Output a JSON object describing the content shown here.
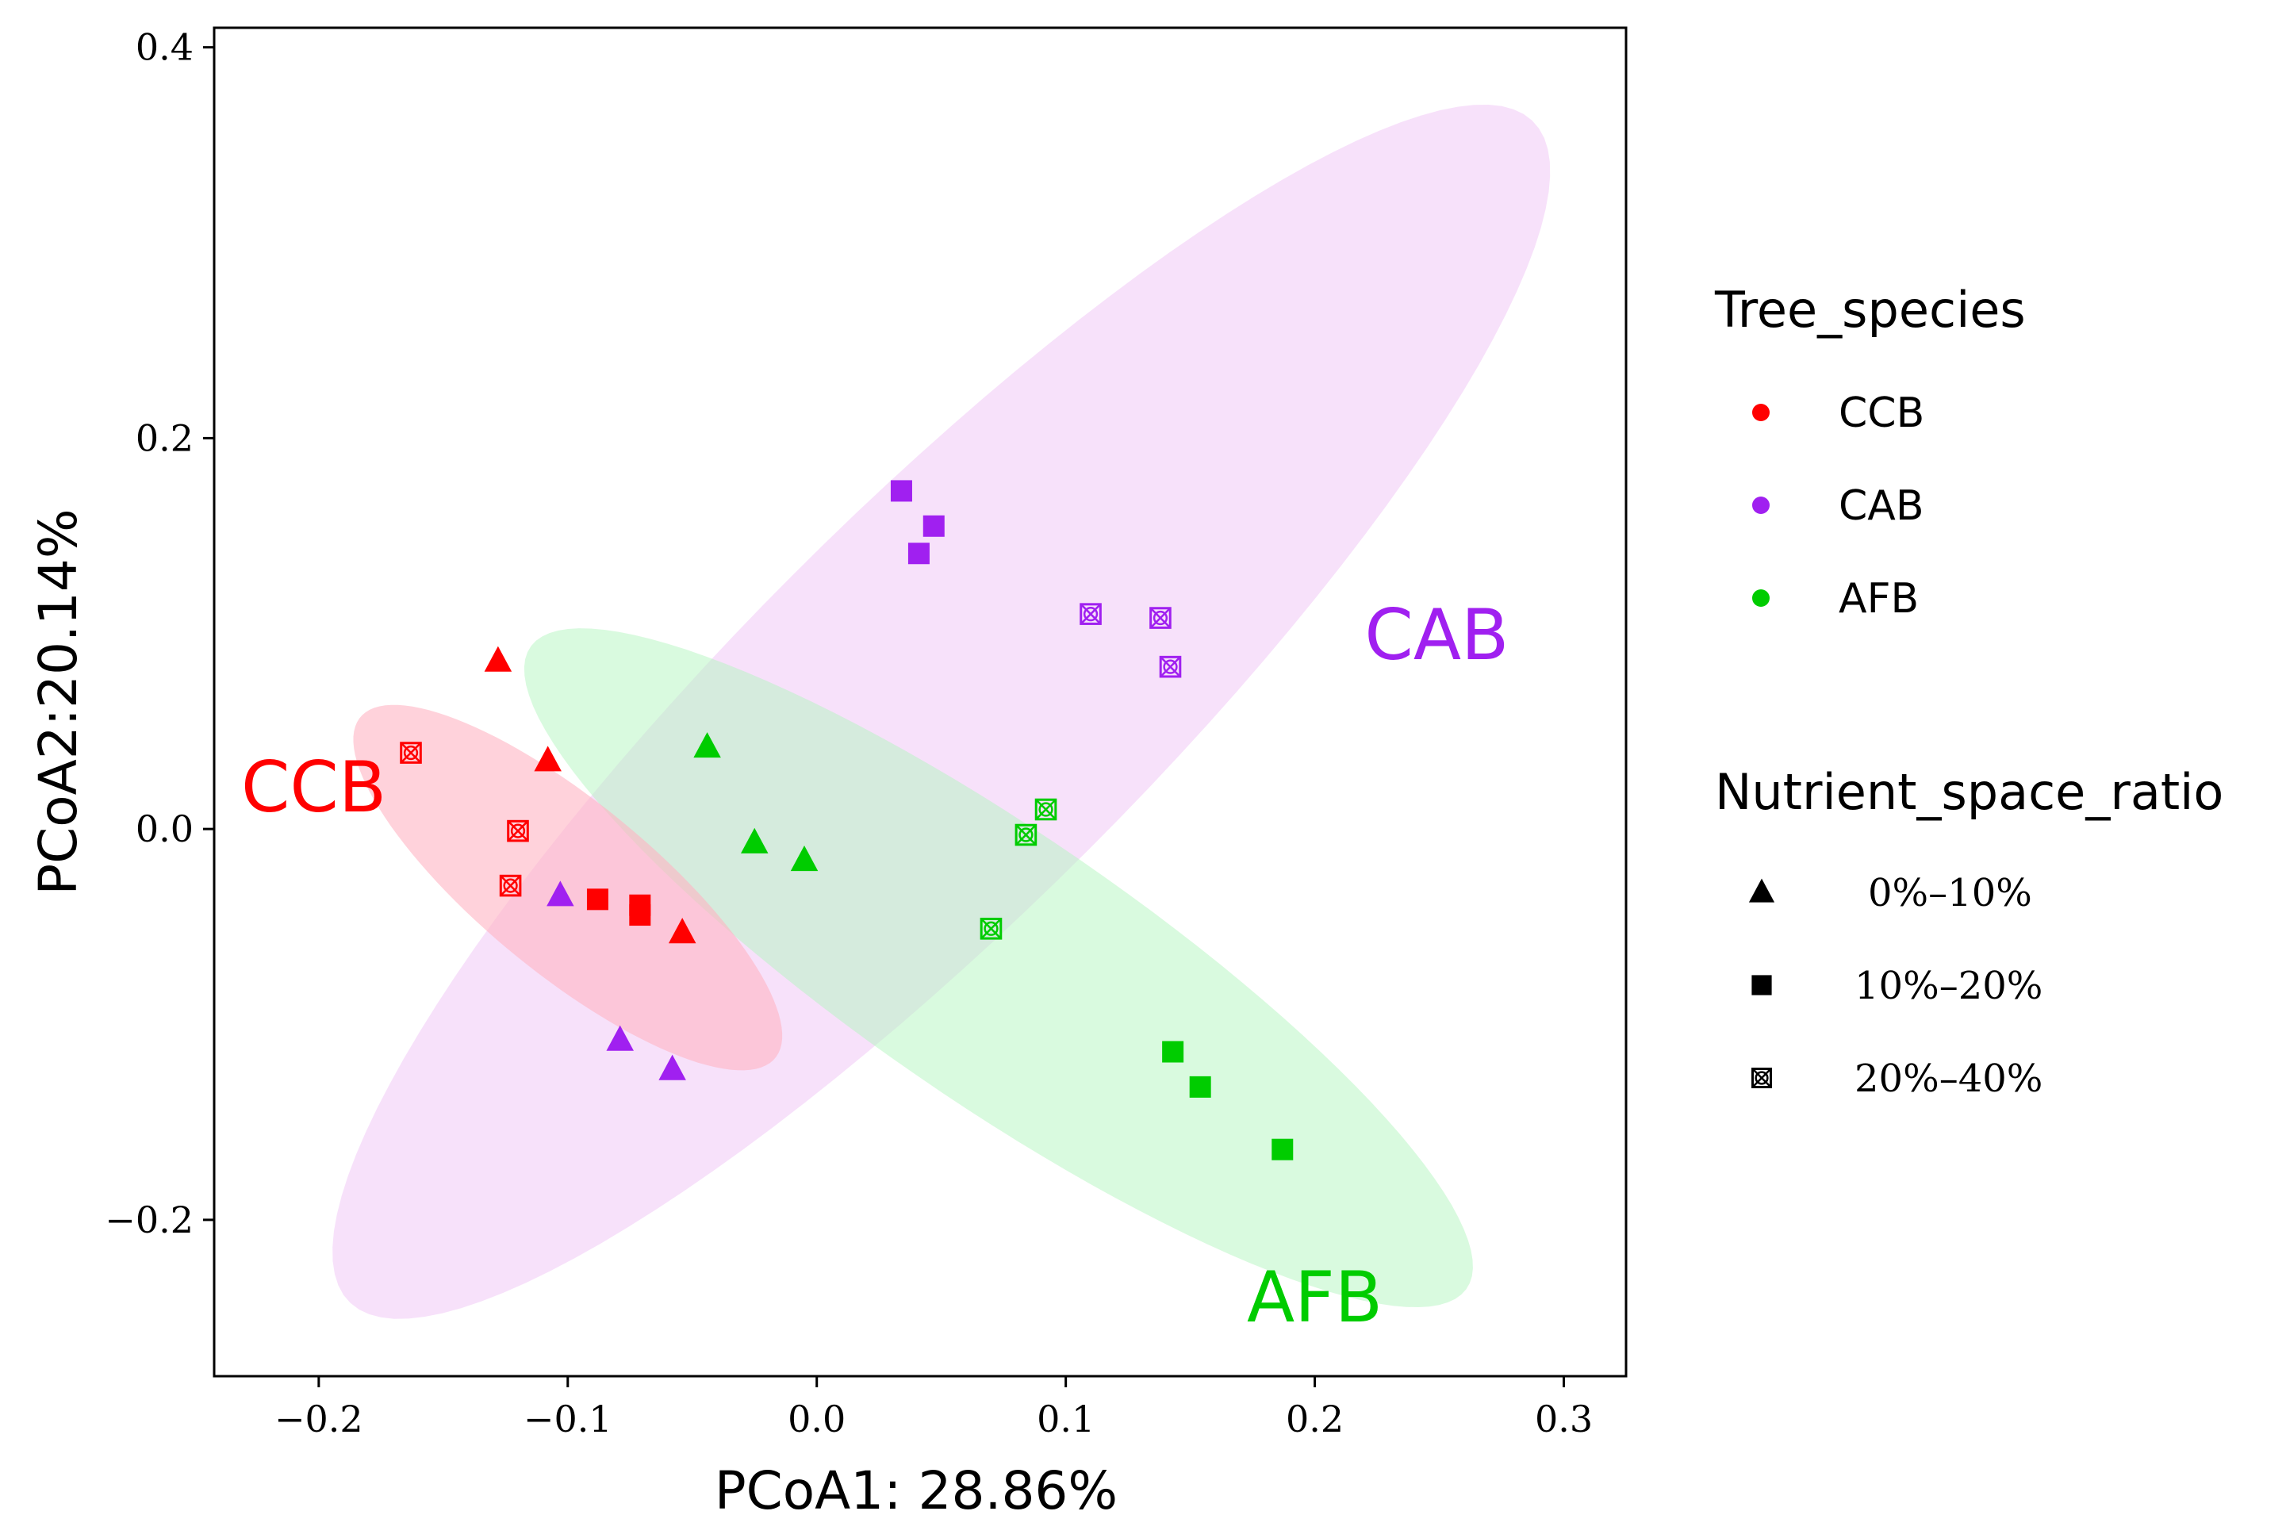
{
  "chart_data": {
    "type": "scatter",
    "title": "",
    "xlabel": "PCoA1: 28.86%",
    "ylabel": "PCoA2:20.14%",
    "xlim": [
      -0.242,
      0.325
    ],
    "ylim": [
      -0.28,
      0.41
    ],
    "xticks": [
      -0.2,
      -0.1,
      0.0,
      0.1,
      0.2,
      0.3
    ],
    "xtick_labels": [
      "−0.2",
      "−0.1",
      "0.0",
      "0.1",
      "0.2",
      "0.3"
    ],
    "yticks": [
      -0.2,
      0.0,
      0.2,
      0.4
    ],
    "ytick_labels": [
      "−0.2",
      "0.0",
      "0.2",
      "0.4"
    ],
    "groups": [
      {
        "name": "CCB",
        "color": "#ff0000"
      },
      {
        "name": "CAB",
        "color": "#a020f0"
      },
      {
        "name": "AFB",
        "color": "#00cc00"
      }
    ],
    "shapes": [
      {
        "name": "0%–10%",
        "shape": "triangle"
      },
      {
        "name": "10%–20%",
        "shape": "square"
      },
      {
        "name": "20%–40%",
        "shape": "boxcross"
      }
    ],
    "ellipses": [
      {
        "group": "CAB",
        "fill": "#f0c8f5",
        "opacity": 0.55,
        "center": [
          0.05,
          0.06
        ],
        "semi_major": 0.385,
        "semi_minor": 0.09,
        "angle_deg": 52.6
      },
      {
        "group": "AFB",
        "fill": "#b3f5bf",
        "opacity": 0.5,
        "center": [
          0.073,
          -0.071
        ],
        "semi_major": 0.25,
        "semi_minor": 0.063,
        "angle_deg": -42.0
      },
      {
        "group": "CCB",
        "fill": "#ffb4c3",
        "opacity": 0.6,
        "center": [
          -0.1,
          -0.03
        ],
        "semi_major": 0.121,
        "semi_minor": 0.039,
        "angle_deg": -47.9
      }
    ],
    "points": [
      {
        "x": -0.128,
        "y": 0.086,
        "group": "CCB",
        "shape": "triangle"
      },
      {
        "x": -0.108,
        "y": 0.035,
        "group": "CCB",
        "shape": "triangle"
      },
      {
        "x": -0.054,
        "y": -0.053,
        "group": "CCB",
        "shape": "triangle"
      },
      {
        "x": -0.088,
        "y": -0.036,
        "group": "CCB",
        "shape": "square"
      },
      {
        "x": -0.071,
        "y": -0.039,
        "group": "CCB",
        "shape": "square"
      },
      {
        "x": -0.071,
        "y": -0.044,
        "group": "CCB",
        "shape": "square"
      },
      {
        "x": -0.163,
        "y": 0.039,
        "group": "CCB",
        "shape": "boxcross"
      },
      {
        "x": -0.12,
        "y": -0.001,
        "group": "CCB",
        "shape": "boxcross"
      },
      {
        "x": -0.123,
        "y": -0.029,
        "group": "CCB",
        "shape": "boxcross"
      },
      {
        "x": -0.103,
        "y": -0.034,
        "group": "CAB",
        "shape": "triangle"
      },
      {
        "x": -0.079,
        "y": -0.108,
        "group": "CAB",
        "shape": "triangle"
      },
      {
        "x": -0.058,
        "y": -0.123,
        "group": "CAB",
        "shape": "triangle"
      },
      {
        "x": 0.034,
        "y": 0.173,
        "group": "CAB",
        "shape": "square"
      },
      {
        "x": 0.047,
        "y": 0.155,
        "group": "CAB",
        "shape": "square"
      },
      {
        "x": 0.041,
        "y": 0.141,
        "group": "CAB",
        "shape": "square"
      },
      {
        "x": 0.11,
        "y": 0.11,
        "group": "CAB",
        "shape": "boxcross"
      },
      {
        "x": 0.138,
        "y": 0.108,
        "group": "CAB",
        "shape": "boxcross"
      },
      {
        "x": 0.142,
        "y": 0.083,
        "group": "CAB",
        "shape": "boxcross"
      },
      {
        "x": -0.044,
        "y": 0.042,
        "group": "AFB",
        "shape": "triangle"
      },
      {
        "x": -0.025,
        "y": -0.007,
        "group": "AFB",
        "shape": "triangle"
      },
      {
        "x": -0.005,
        "y": -0.016,
        "group": "AFB",
        "shape": "triangle"
      },
      {
        "x": 0.143,
        "y": -0.114,
        "group": "AFB",
        "shape": "square"
      },
      {
        "x": 0.154,
        "y": -0.132,
        "group": "AFB",
        "shape": "square"
      },
      {
        "x": 0.187,
        "y": -0.164,
        "group": "AFB",
        "shape": "square"
      },
      {
        "x": 0.092,
        "y": 0.01,
        "group": "AFB",
        "shape": "boxcross"
      },
      {
        "x": 0.084,
        "y": -0.003,
        "group": "AFB",
        "shape": "boxcross"
      },
      {
        "x": 0.07,
        "y": -0.051,
        "group": "AFB",
        "shape": "boxcross"
      }
    ],
    "group_labels": [
      {
        "text": "CCB",
        "group": "CCB",
        "x": -0.202,
        "y": 0.009
      },
      {
        "text": "CAB",
        "group": "CAB",
        "x": 0.249,
        "y": 0.087
      },
      {
        "text": "AFB",
        "group": "AFB",
        "x": 0.2,
        "y": -0.252
      }
    ],
    "legend": {
      "position": "right",
      "color_title": "Tree_species",
      "shape_title": "Nutrient_space_ratio"
    }
  }
}
